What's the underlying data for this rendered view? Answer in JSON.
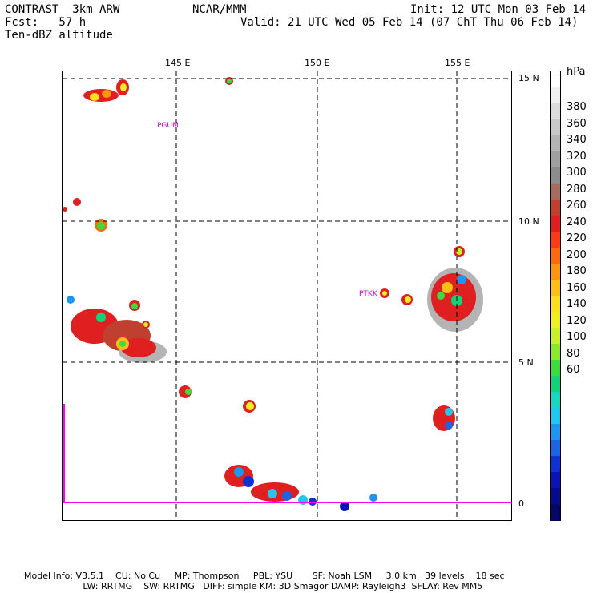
{
  "header": {
    "model": "CONTRAST  3km ARW",
    "institution": "NCAR/MMM",
    "init": "Init: 12 UTC Mon 03 Feb 14",
    "fcst": "Fcst:   57 h",
    "valid": "Valid: 21 UTC Wed 05 Feb 14 (07 ChT Thu 06 Feb 14)",
    "field": "Ten-dBZ altitude"
  },
  "map": {
    "lon_labels": [
      "145 E",
      "150 E",
      "155 E"
    ],
    "lat_labels": [
      "15 N",
      "10 N",
      "5 N",
      "0"
    ],
    "stations": [
      "PGUM",
      "PTKK"
    ],
    "colors": {
      "grid": "#000000",
      "boundary": "#ff00ff"
    }
  },
  "colorbar": {
    "unit": "hPa",
    "labels": [
      "380",
      "360",
      "340",
      "320",
      "300",
      "280",
      "260",
      "240",
      "220",
      "200",
      "180",
      "160",
      "140",
      "120",
      "100",
      "80",
      "60"
    ],
    "colors": [
      "#ffffff",
      "#f0f0f0",
      "#dcdcdc",
      "#c8c8c8",
      "#b4b4b4",
      "#a0a0a0",
      "#8c8c8c",
      "#a46b5f",
      "#c04030",
      "#e02020",
      "#ff3a18",
      "#ff6a10",
      "#ff9410",
      "#ffbe18",
      "#ffe020",
      "#f0f020",
      "#c8f028",
      "#8ce82c",
      "#3cdc3c",
      "#14d278",
      "#18d8c0",
      "#20c8f0",
      "#1e96f0",
      "#1a64e6",
      "#1032d2",
      "#0a14b4",
      "#080a8c",
      "#060664"
    ]
  },
  "footer": {
    "line1": "Model Info: V3.5.1    CU: No Cu     MP: Thompson     PBL: YSU       SF: Noah LSM     3.0 km   39 levels    18 sec",
    "line2": "                     LW: RRTMG    SW: RRTMG   DIFF: simple KM: 3D Smagor DAMP: Rayleigh3  SFLAY: Rev MM5"
  }
}
